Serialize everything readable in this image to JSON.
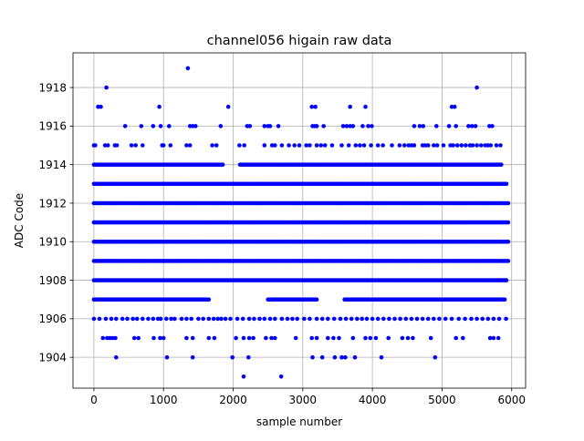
{
  "chart_data": {
    "type": "scatter",
    "title": "channel056 higain raw data",
    "xlabel": "sample number",
    "ylabel": "ADC Code",
    "xlim": [
      -300,
      6200
    ],
    "ylim": [
      1902.4,
      1919.8
    ],
    "xticks": [
      0,
      1000,
      2000,
      3000,
      4000,
      5000,
      6000
    ],
    "yticks": [
      1904,
      1906,
      1908,
      1910,
      1912,
      1914,
      1916,
      1918
    ],
    "xtick_labels": [
      "0",
      "1000",
      "2000",
      "3000",
      "4000",
      "5000",
      "6000"
    ],
    "ytick_labels": [
      "1904",
      "1906",
      "1908",
      "1910",
      "1912",
      "1914",
      "1916",
      "1918"
    ],
    "grid": true,
    "marker_color": "#0000ff",
    "sample_count": 5950,
    "series": [
      {
        "dense_levels": [
          {
            "y": 1908,
            "x_range": [
              0,
              5940
            ]
          },
          {
            "y": 1909,
            "x_range": [
              0,
              5950
            ]
          },
          {
            "y": 1910,
            "x_range": [
              0,
              5950
            ]
          },
          {
            "y": 1911,
            "x_range": [
              0,
              5950
            ]
          },
          {
            "y": 1912,
            "x_range": [
              0,
              5950
            ]
          },
          {
            "y": 1913,
            "x_range": [
              0,
              5945
            ]
          }
        ],
        "partial_levels": [
          {
            "y": 1907,
            "segments": [
              [
                0,
                1650
              ],
              [
                2500,
                3200
              ],
              [
                3600,
                5900
              ]
            ]
          },
          {
            "y": 1914,
            "segments": [
              [
                0,
                1850
              ],
              [
                2100,
                5850
              ]
            ]
          }
        ],
        "points": [
          [
            180,
            1918
          ],
          [
            1350,
            1919
          ],
          [
            5500,
            1918
          ],
          [
            60,
            1917
          ],
          [
            100,
            1917
          ],
          [
            940,
            1917
          ],
          [
            1930,
            1917
          ],
          [
            3130,
            1917
          ],
          [
            3180,
            1917
          ],
          [
            3680,
            1917
          ],
          [
            3900,
            1917
          ],
          [
            5140,
            1917
          ],
          [
            5180,
            1917
          ],
          [
            450,
            1916
          ],
          [
            680,
            1916
          ],
          [
            850,
            1916
          ],
          [
            960,
            1916
          ],
          [
            1080,
            1916
          ],
          [
            1380,
            1916
          ],
          [
            1420,
            1916
          ],
          [
            1460,
            1916
          ],
          [
            1820,
            1916
          ],
          [
            2200,
            1916
          ],
          [
            2240,
            1916
          ],
          [
            2450,
            1916
          ],
          [
            2500,
            1916
          ],
          [
            2530,
            1916
          ],
          [
            2650,
            1916
          ],
          [
            3140,
            1916
          ],
          [
            3170,
            1916
          ],
          [
            3200,
            1916
          ],
          [
            3300,
            1916
          ],
          [
            3580,
            1916
          ],
          [
            3630,
            1916
          ],
          [
            3680,
            1916
          ],
          [
            3720,
            1916
          ],
          [
            3860,
            1916
          ],
          [
            3940,
            1916
          ],
          [
            3990,
            1916
          ],
          [
            4600,
            1916
          ],
          [
            4680,
            1916
          ],
          [
            4730,
            1916
          ],
          [
            4920,
            1916
          ],
          [
            5100,
            1916
          ],
          [
            5200,
            1916
          ],
          [
            5380,
            1916
          ],
          [
            5430,
            1916
          ],
          [
            5480,
            1916
          ],
          [
            5680,
            1916
          ],
          [
            5720,
            1916
          ],
          [
            0,
            1915
          ],
          [
            20,
            1915
          ],
          [
            160,
            1915
          ],
          [
            200,
            1915
          ],
          [
            300,
            1915
          ],
          [
            330,
            1915
          ],
          [
            540,
            1915
          ],
          [
            600,
            1915
          ],
          [
            700,
            1915
          ],
          [
            980,
            1915
          ],
          [
            1000,
            1915
          ],
          [
            1100,
            1915
          ],
          [
            1330,
            1915
          ],
          [
            1380,
            1915
          ],
          [
            1700,
            1915
          ],
          [
            1760,
            1915
          ],
          [
            2090,
            1915
          ],
          [
            2160,
            1915
          ],
          [
            2450,
            1915
          ],
          [
            2560,
            1915
          ],
          [
            2600,
            1915
          ],
          [
            2700,
            1915
          ],
          [
            2800,
            1915
          ],
          [
            2880,
            1915
          ],
          [
            2950,
            1915
          ],
          [
            3050,
            1915
          ],
          [
            3100,
            1915
          ],
          [
            3200,
            1915
          ],
          [
            3260,
            1915
          ],
          [
            3320,
            1915
          ],
          [
            3420,
            1915
          ],
          [
            3560,
            1915
          ],
          [
            3660,
            1915
          ],
          [
            3760,
            1915
          ],
          [
            3820,
            1915
          ],
          [
            3880,
            1915
          ],
          [
            3980,
            1915
          ],
          [
            4080,
            1915
          ],
          [
            4150,
            1915
          ],
          [
            4280,
            1915
          ],
          [
            4390,
            1915
          ],
          [
            4460,
            1915
          ],
          [
            4520,
            1915
          ],
          [
            4560,
            1915
          ],
          [
            4600,
            1915
          ],
          [
            4720,
            1915
          ],
          [
            4760,
            1915
          ],
          [
            4800,
            1915
          ],
          [
            4880,
            1915
          ],
          [
            4930,
            1915
          ],
          [
            5020,
            1915
          ],
          [
            5120,
            1915
          ],
          [
            5160,
            1915
          ],
          [
            5220,
            1915
          ],
          [
            5280,
            1915
          ],
          [
            5340,
            1915
          ],
          [
            5400,
            1915
          ],
          [
            5440,
            1915
          ],
          [
            5500,
            1915
          ],
          [
            5560,
            1915
          ],
          [
            5620,
            1915
          ],
          [
            5660,
            1915
          ],
          [
            5700,
            1915
          ],
          [
            5780,
            1915
          ],
          [
            5840,
            1915
          ],
          [
            0,
            1906
          ],
          [
            80,
            1906
          ],
          [
            170,
            1906
          ],
          [
            250,
            1906
          ],
          [
            320,
            1906
          ],
          [
            410,
            1906
          ],
          [
            480,
            1906
          ],
          [
            560,
            1906
          ],
          [
            620,
            1906
          ],
          [
            700,
            1906
          ],
          [
            780,
            1906
          ],
          [
            850,
            1906
          ],
          [
            920,
            1906
          ],
          [
            960,
            1906
          ],
          [
            1040,
            1906
          ],
          [
            1110,
            1906
          ],
          [
            1160,
            1906
          ],
          [
            1260,
            1906
          ],
          [
            1330,
            1906
          ],
          [
            1400,
            1906
          ],
          [
            1500,
            1906
          ],
          [
            1570,
            1906
          ],
          [
            1650,
            1906
          ],
          [
            1720,
            1906
          ],
          [
            1780,
            1906
          ],
          [
            1830,
            1906
          ],
          [
            1890,
            1906
          ],
          [
            1960,
            1906
          ],
          [
            2060,
            1906
          ],
          [
            2140,
            1906
          ],
          [
            2230,
            1906
          ],
          [
            2300,
            1906
          ],
          [
            2380,
            1906
          ],
          [
            2450,
            1906
          ],
          [
            2530,
            1906
          ],
          [
            2600,
            1906
          ],
          [
            2700,
            1906
          ],
          [
            2780,
            1906
          ],
          [
            2850,
            1906
          ],
          [
            2920,
            1906
          ],
          [
            3020,
            1906
          ],
          [
            3100,
            1906
          ],
          [
            3200,
            1906
          ],
          [
            3280,
            1906
          ],
          [
            3360,
            1906
          ],
          [
            3450,
            1906
          ],
          [
            3540,
            1906
          ],
          [
            3620,
            1906
          ],
          [
            3700,
            1906
          ],
          [
            3780,
            1906
          ],
          [
            3850,
            1906
          ],
          [
            3920,
            1906
          ],
          [
            4000,
            1906
          ],
          [
            4080,
            1906
          ],
          [
            4160,
            1906
          ],
          [
            4240,
            1906
          ],
          [
            4320,
            1906
          ],
          [
            4400,
            1906
          ],
          [
            4480,
            1906
          ],
          [
            4560,
            1906
          ],
          [
            4640,
            1906
          ],
          [
            4720,
            1906
          ],
          [
            4800,
            1906
          ],
          [
            4880,
            1906
          ],
          [
            4960,
            1906
          ],
          [
            5050,
            1906
          ],
          [
            5140,
            1906
          ],
          [
            5240,
            1906
          ],
          [
            5330,
            1906
          ],
          [
            5420,
            1906
          ],
          [
            5500,
            1906
          ],
          [
            5580,
            1906
          ],
          [
            5660,
            1906
          ],
          [
            5740,
            1906
          ],
          [
            5820,
            1906
          ],
          [
            5920,
            1906
          ],
          [
            130,
            1905
          ],
          [
            190,
            1905
          ],
          [
            230,
            1905
          ],
          [
            270,
            1905
          ],
          [
            310,
            1905
          ],
          [
            580,
            1905
          ],
          [
            640,
            1905
          ],
          [
            860,
            1905
          ],
          [
            950,
            1905
          ],
          [
            1000,
            1905
          ],
          [
            1330,
            1905
          ],
          [
            1420,
            1905
          ],
          [
            1650,
            1905
          ],
          [
            1730,
            1905
          ],
          [
            2040,
            1905
          ],
          [
            2150,
            1905
          ],
          [
            2230,
            1905
          ],
          [
            2290,
            1905
          ],
          [
            2470,
            1905
          ],
          [
            2550,
            1905
          ],
          [
            2600,
            1905
          ],
          [
            2900,
            1905
          ],
          [
            3130,
            1905
          ],
          [
            3200,
            1905
          ],
          [
            3360,
            1905
          ],
          [
            3440,
            1905
          ],
          [
            3520,
            1905
          ],
          [
            3720,
            1905
          ],
          [
            3900,
            1905
          ],
          [
            3970,
            1905
          ],
          [
            4050,
            1905
          ],
          [
            4230,
            1905
          ],
          [
            4430,
            1905
          ],
          [
            4510,
            1905
          ],
          [
            4580,
            1905
          ],
          [
            4840,
            1905
          ],
          [
            5200,
            1905
          ],
          [
            5300,
            1905
          ],
          [
            5690,
            1905
          ],
          [
            5740,
            1905
          ],
          [
            5810,
            1905
          ],
          [
            320,
            1904
          ],
          [
            1050,
            1904
          ],
          [
            1420,
            1904
          ],
          [
            1990,
            1904
          ],
          [
            2220,
            1904
          ],
          [
            3140,
            1904
          ],
          [
            3280,
            1904
          ],
          [
            3460,
            1904
          ],
          [
            3560,
            1904
          ],
          [
            3610,
            1904
          ],
          [
            3750,
            1904
          ],
          [
            4130,
            1904
          ],
          [
            4900,
            1904
          ],
          [
            2150,
            1903
          ],
          [
            2690,
            1903
          ]
        ]
      }
    ]
  }
}
